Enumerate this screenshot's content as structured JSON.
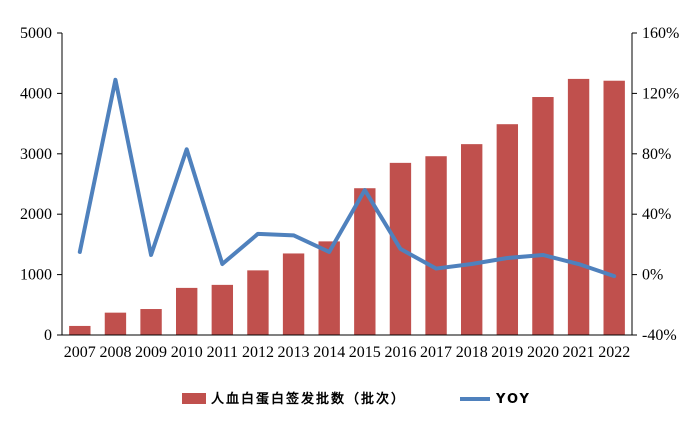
{
  "chart_data": {
    "type": "bar",
    "categories": [
      "2007",
      "2008",
      "2009",
      "2010",
      "2011",
      "2012",
      "2013",
      "2014",
      "2015",
      "2016",
      "2017",
      "2018",
      "2019",
      "2020",
      "2021",
      "2022"
    ],
    "series": [
      {
        "name": "人血白蛋白签发批数（批次）",
        "type": "bar",
        "axis": "left",
        "color": "#C0504D",
        "values": [
          150,
          370,
          430,
          780,
          830,
          1070,
          1350,
          1550,
          2430,
          2850,
          2960,
          3160,
          3490,
          3940,
          4240,
          4210
        ]
      },
      {
        "name": "YOY",
        "type": "line",
        "axis": "right",
        "color": "#4F81BD",
        "values": [
          15,
          129,
          13,
          83,
          7,
          27,
          26,
          15,
          56,
          17,
          4,
          7,
          11,
          13,
          7,
          -1
        ]
      }
    ],
    "y_left": {
      "min": 0,
      "max": 5000,
      "ticks": [
        "0",
        "1000",
        "2000",
        "3000",
        "4000",
        "5000"
      ]
    },
    "y_right": {
      "min": -40,
      "max": 160,
      "ticks": [
        "-40%",
        "0%",
        "40%",
        "80%",
        "120%",
        "160%"
      ]
    },
    "grid": false,
    "legend_position": "bottom"
  }
}
